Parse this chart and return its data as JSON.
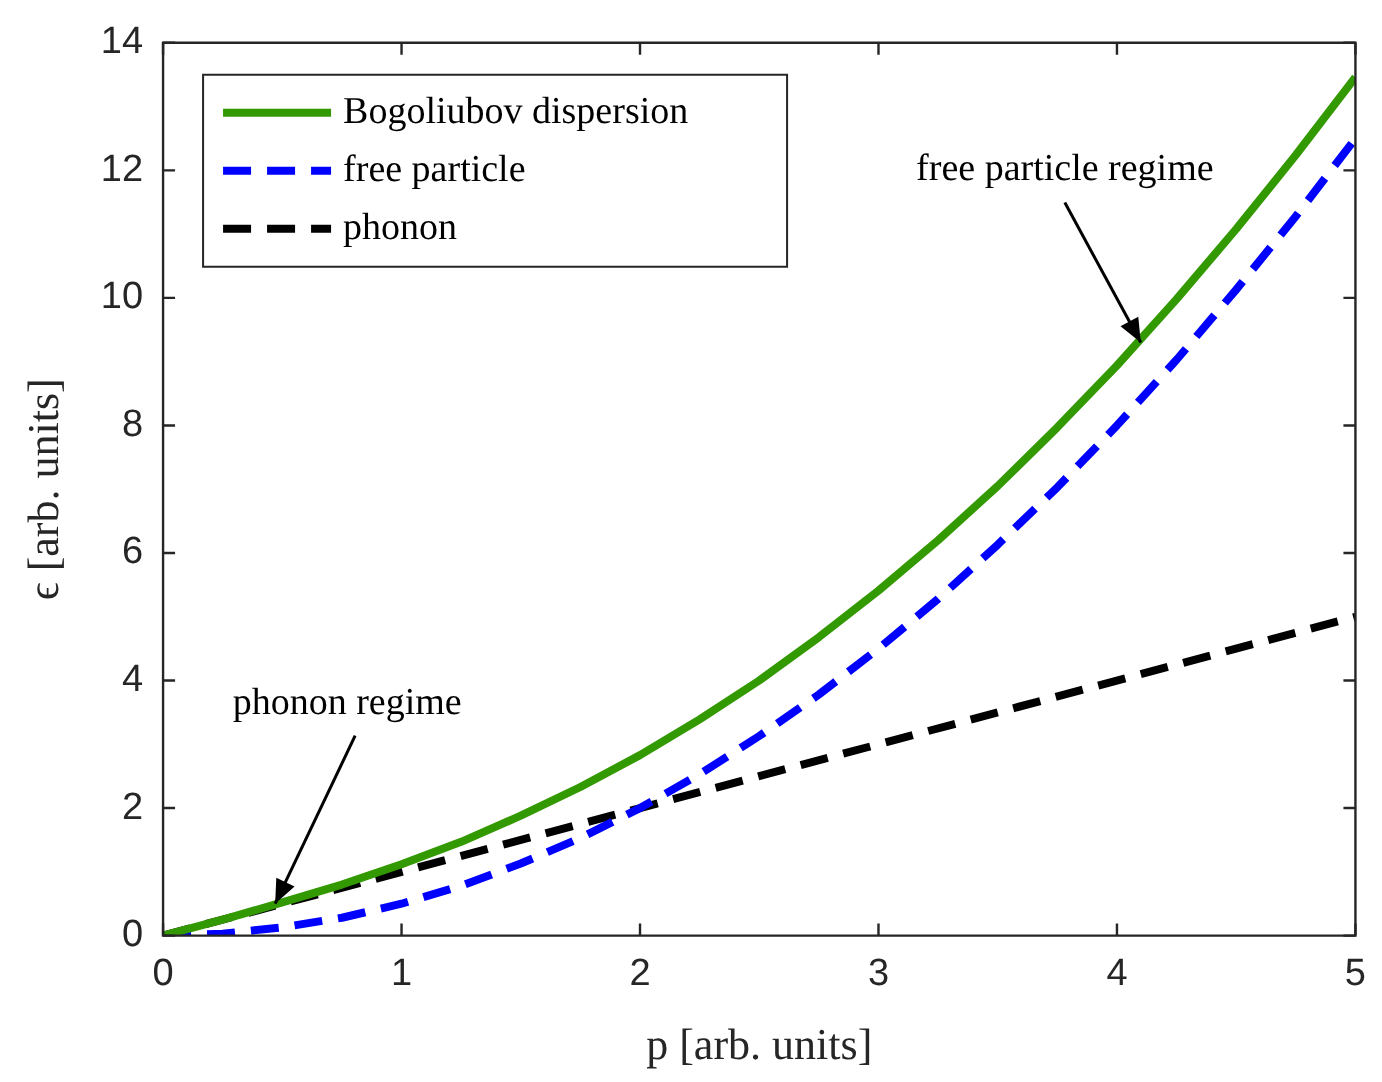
{
  "chart_data": {
    "type": "line",
    "xlabel": "p [arb. units]",
    "ylabel": "ϵ [arb. units]",
    "xlim": [
      0,
      5
    ],
    "ylim": [
      0,
      14
    ],
    "xticks": [
      0,
      1,
      2,
      3,
      4,
      5
    ],
    "yticks": [
      0,
      2,
      4,
      6,
      8,
      10,
      12,
      14
    ],
    "grid": false,
    "legend": "top left",
    "marker": "none",
    "series": [
      {
        "name": "Bogoliubov dispersion",
        "color": "#339900",
        "line_style": "solid",
        "x": [
          0,
          0.25,
          0.5,
          0.75,
          1,
          1.25,
          1.5,
          1.75,
          2,
          2.25,
          2.5,
          2.75,
          3,
          3.25,
          3.5,
          3.75,
          4,
          4.25,
          4.5,
          4.75,
          5
        ],
        "values": [
          0,
          0.25,
          0.52,
          0.8,
          1.12,
          1.47,
          1.88,
          2.33,
          2.83,
          3.39,
          4,
          4.68,
          5.41,
          6.2,
          7.05,
          7.97,
          8.94,
          9.98,
          11.08,
          12.24,
          13.46
        ]
      },
      {
        "name": "free particle",
        "color": "#0000ff",
        "line_style": "dashed",
        "x": [
          0,
          0.25,
          0.5,
          0.75,
          1,
          1.25,
          1.5,
          1.75,
          2,
          2.25,
          2.5,
          2.75,
          3,
          3.25,
          3.5,
          3.75,
          4,
          4.25,
          4.5,
          4.75,
          5
        ],
        "values": [
          0,
          0.03,
          0.13,
          0.28,
          0.5,
          0.78,
          1.13,
          1.53,
          2,
          2.53,
          3.13,
          3.78,
          4.5,
          5.28,
          6.13,
          7.03,
          8,
          9.03,
          10.13,
          11.28,
          12.5
        ]
      },
      {
        "name": "phonon",
        "color": "#000000",
        "line_style": "dashed",
        "x": [
          0,
          5
        ],
        "values": [
          0,
          5
        ]
      }
    ],
    "annotations": [
      {
        "text": "phonon regime",
        "x": 0.47,
        "y": 0.5
      },
      {
        "text": "free particle regime",
        "x": 4.1,
        "y": 9.3
      }
    ]
  }
}
